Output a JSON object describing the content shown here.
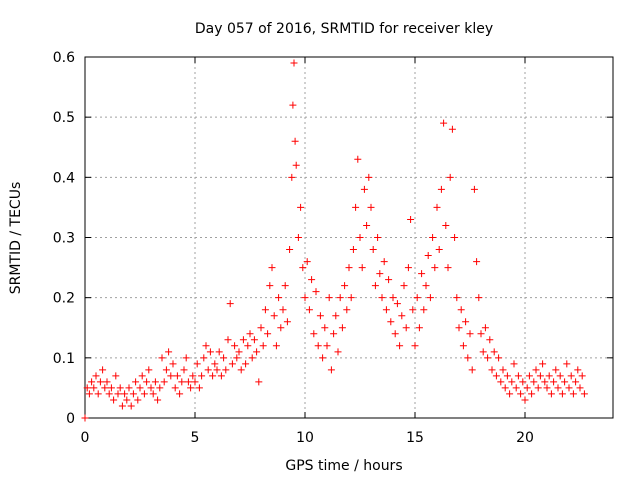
{
  "chart_data": {
    "type": "scatter",
    "title": "Day 057 of 2016, SRMTID for receiver kley",
    "xlabel": "GPS time / hours",
    "ylabel": "SRMTID / TECUs",
    "xlim": [
      0,
      24
    ],
    "ylim": [
      0,
      0.6
    ],
    "xticks": [
      0,
      5,
      10,
      15,
      20
    ],
    "xtick_labels": [
      "0",
      "5",
      "10",
      "15",
      "20"
    ],
    "yticks": [
      0,
      0.1,
      0.2,
      0.3,
      0.4,
      0.5,
      0.6
    ],
    "ytick_labels": [
      "0",
      "0.1",
      "0.2",
      "0.3",
      "0.4",
      "0.5",
      "0.6"
    ],
    "grid": true,
    "marker": "+",
    "color": "#ff0000",
    "series": [
      {
        "name": "SRMTID",
        "points": [
          [
            0.0,
            0.0
          ],
          [
            0.1,
            0.05
          ],
          [
            0.2,
            0.04
          ],
          [
            0.3,
            0.06
          ],
          [
            0.4,
            0.05
          ],
          [
            0.5,
            0.07
          ],
          [
            0.6,
            0.04
          ],
          [
            0.7,
            0.06
          ],
          [
            0.8,
            0.08
          ],
          [
            0.9,
            0.05
          ],
          [
            1.0,
            0.06
          ],
          [
            1.1,
            0.04
          ],
          [
            1.2,
            0.05
          ],
          [
            1.3,
            0.03
          ],
          [
            1.4,
            0.07
          ],
          [
            1.5,
            0.04
          ],
          [
            1.6,
            0.05
          ],
          [
            1.7,
            0.02
          ],
          [
            1.8,
            0.04
          ],
          [
            1.9,
            0.03
          ],
          [
            2.0,
            0.05
          ],
          [
            2.1,
            0.02
          ],
          [
            2.2,
            0.04
          ],
          [
            2.3,
            0.06
          ],
          [
            2.4,
            0.03
          ],
          [
            2.5,
            0.05
          ],
          [
            2.6,
            0.07
          ],
          [
            2.7,
            0.04
          ],
          [
            2.8,
            0.06
          ],
          [
            2.9,
            0.08
          ],
          [
            3.0,
            0.05
          ],
          [
            3.1,
            0.04
          ],
          [
            3.2,
            0.06
          ],
          [
            3.3,
            0.03
          ],
          [
            3.4,
            0.05
          ],
          [
            3.5,
            0.1
          ],
          [
            3.6,
            0.06
          ],
          [
            3.7,
            0.08
          ],
          [
            3.8,
            0.11
          ],
          [
            3.9,
            0.07
          ],
          [
            4.0,
            0.09
          ],
          [
            4.1,
            0.05
          ],
          [
            4.2,
            0.07
          ],
          [
            4.3,
            0.04
          ],
          [
            4.4,
            0.06
          ],
          [
            4.5,
            0.08
          ],
          [
            4.6,
            0.1
          ],
          [
            4.7,
            0.06
          ],
          [
            4.8,
            0.05
          ],
          [
            4.9,
            0.07
          ],
          [
            5.0,
            0.06
          ],
          [
            5.1,
            0.09
          ],
          [
            5.2,
            0.05
          ],
          [
            5.3,
            0.07
          ],
          [
            5.4,
            0.1
          ],
          [
            5.5,
            0.12
          ],
          [
            5.6,
            0.08
          ],
          [
            5.7,
            0.11
          ],
          [
            5.8,
            0.07
          ],
          [
            5.9,
            0.09
          ],
          [
            6.0,
            0.08
          ],
          [
            6.1,
            0.11
          ],
          [
            6.2,
            0.07
          ],
          [
            6.3,
            0.1
          ],
          [
            6.4,
            0.08
          ],
          [
            6.5,
            0.13
          ],
          [
            6.6,
            0.19
          ],
          [
            6.7,
            0.09
          ],
          [
            6.8,
            0.12
          ],
          [
            6.9,
            0.1
          ],
          [
            7.0,
            0.11
          ],
          [
            7.1,
            0.08
          ],
          [
            7.2,
            0.13
          ],
          [
            7.3,
            0.09
          ],
          [
            7.4,
            0.12
          ],
          [
            7.5,
            0.14
          ],
          [
            7.6,
            0.1
          ],
          [
            7.7,
            0.13
          ],
          [
            7.8,
            0.11
          ],
          [
            7.9,
            0.06
          ],
          [
            8.0,
            0.15
          ],
          [
            8.1,
            0.12
          ],
          [
            8.2,
            0.18
          ],
          [
            8.3,
            0.14
          ],
          [
            8.4,
            0.22
          ],
          [
            8.5,
            0.25
          ],
          [
            8.6,
            0.17
          ],
          [
            8.7,
            0.12
          ],
          [
            8.8,
            0.2
          ],
          [
            8.9,
            0.15
          ],
          [
            9.0,
            0.18
          ],
          [
            9.1,
            0.22
          ],
          [
            9.2,
            0.16
          ],
          [
            9.3,
            0.28
          ],
          [
            9.4,
            0.4
          ],
          [
            9.45,
            0.52
          ],
          [
            9.5,
            0.59
          ],
          [
            9.55,
            0.46
          ],
          [
            9.6,
            0.42
          ],
          [
            9.7,
            0.3
          ],
          [
            9.8,
            0.35
          ],
          [
            9.9,
            0.25
          ],
          [
            10.0,
            0.2
          ],
          [
            10.1,
            0.26
          ],
          [
            10.2,
            0.18
          ],
          [
            10.3,
            0.23
          ],
          [
            10.4,
            0.14
          ],
          [
            10.5,
            0.21
          ],
          [
            10.6,
            0.12
          ],
          [
            10.7,
            0.17
          ],
          [
            10.8,
            0.1
          ],
          [
            10.9,
            0.15
          ],
          [
            11.0,
            0.12
          ],
          [
            11.1,
            0.2
          ],
          [
            11.2,
            0.08
          ],
          [
            11.3,
            0.14
          ],
          [
            11.4,
            0.17
          ],
          [
            11.5,
            0.11
          ],
          [
            11.6,
            0.2
          ],
          [
            11.7,
            0.15
          ],
          [
            11.8,
            0.22
          ],
          [
            11.9,
            0.18
          ],
          [
            12.0,
            0.25
          ],
          [
            12.1,
            0.2
          ],
          [
            12.2,
            0.28
          ],
          [
            12.3,
            0.35
          ],
          [
            12.4,
            0.43
          ],
          [
            12.5,
            0.3
          ],
          [
            12.6,
            0.25
          ],
          [
            12.7,
            0.38
          ],
          [
            12.8,
            0.32
          ],
          [
            12.9,
            0.4
          ],
          [
            13.0,
            0.35
          ],
          [
            13.1,
            0.28
          ],
          [
            13.2,
            0.22
          ],
          [
            13.3,
            0.3
          ],
          [
            13.4,
            0.24
          ],
          [
            13.5,
            0.2
          ],
          [
            13.6,
            0.26
          ],
          [
            13.7,
            0.18
          ],
          [
            13.8,
            0.23
          ],
          [
            13.9,
            0.16
          ],
          [
            14.0,
            0.2
          ],
          [
            14.1,
            0.14
          ],
          [
            14.2,
            0.19
          ],
          [
            14.3,
            0.12
          ],
          [
            14.4,
            0.17
          ],
          [
            14.5,
            0.22
          ],
          [
            14.6,
            0.15
          ],
          [
            14.7,
            0.25
          ],
          [
            14.8,
            0.33
          ],
          [
            14.9,
            0.18
          ],
          [
            15.0,
            0.12
          ],
          [
            15.1,
            0.2
          ],
          [
            15.2,
            0.15
          ],
          [
            15.3,
            0.24
          ],
          [
            15.4,
            0.18
          ],
          [
            15.5,
            0.22
          ],
          [
            15.6,
            0.27
          ],
          [
            15.7,
            0.2
          ],
          [
            15.8,
            0.3
          ],
          [
            15.9,
            0.25
          ],
          [
            16.0,
            0.35
          ],
          [
            16.1,
            0.28
          ],
          [
            16.2,
            0.38
          ],
          [
            16.3,
            0.49
          ],
          [
            16.4,
            0.32
          ],
          [
            16.5,
            0.25
          ],
          [
            16.6,
            0.4
          ],
          [
            16.7,
            0.48
          ],
          [
            16.8,
            0.3
          ],
          [
            16.9,
            0.2
          ],
          [
            17.0,
            0.15
          ],
          [
            17.1,
            0.18
          ],
          [
            17.2,
            0.12
          ],
          [
            17.3,
            0.16
          ],
          [
            17.4,
            0.1
          ],
          [
            17.5,
            0.14
          ],
          [
            17.6,
            0.08
          ],
          [
            17.7,
            0.38
          ],
          [
            17.8,
            0.26
          ],
          [
            17.9,
            0.2
          ],
          [
            18.0,
            0.14
          ],
          [
            18.1,
            0.11
          ],
          [
            18.2,
            0.15
          ],
          [
            18.3,
            0.1
          ],
          [
            18.4,
            0.13
          ],
          [
            18.5,
            0.08
          ],
          [
            18.6,
            0.11
          ],
          [
            18.7,
            0.07
          ],
          [
            18.8,
            0.1
          ],
          [
            18.9,
            0.06
          ],
          [
            19.0,
            0.08
          ],
          [
            19.1,
            0.05
          ],
          [
            19.2,
            0.07
          ],
          [
            19.3,
            0.04
          ],
          [
            19.4,
            0.06
          ],
          [
            19.5,
            0.09
          ],
          [
            19.6,
            0.05
          ],
          [
            19.7,
            0.07
          ],
          [
            19.8,
            0.04
          ],
          [
            19.9,
            0.06
          ],
          [
            20.0,
            0.03
          ],
          [
            20.1,
            0.05
          ],
          [
            20.2,
            0.07
          ],
          [
            20.3,
            0.04
          ],
          [
            20.4,
            0.06
          ],
          [
            20.5,
            0.08
          ],
          [
            20.6,
            0.05
          ],
          [
            20.7,
            0.07
          ],
          [
            20.8,
            0.09
          ],
          [
            20.9,
            0.06
          ],
          [
            21.0,
            0.05
          ],
          [
            21.1,
            0.07
          ],
          [
            21.2,
            0.04
          ],
          [
            21.3,
            0.06
          ],
          [
            21.4,
            0.08
          ],
          [
            21.5,
            0.05
          ],
          [
            21.6,
            0.07
          ],
          [
            21.7,
            0.04
          ],
          [
            21.8,
            0.06
          ],
          [
            21.9,
            0.09
          ],
          [
            22.0,
            0.05
          ],
          [
            22.1,
            0.07
          ],
          [
            22.2,
            0.04
          ],
          [
            22.3,
            0.06
          ],
          [
            22.4,
            0.08
          ],
          [
            22.5,
            0.05
          ],
          [
            22.6,
            0.07
          ],
          [
            22.7,
            0.04
          ]
        ]
      }
    ]
  }
}
